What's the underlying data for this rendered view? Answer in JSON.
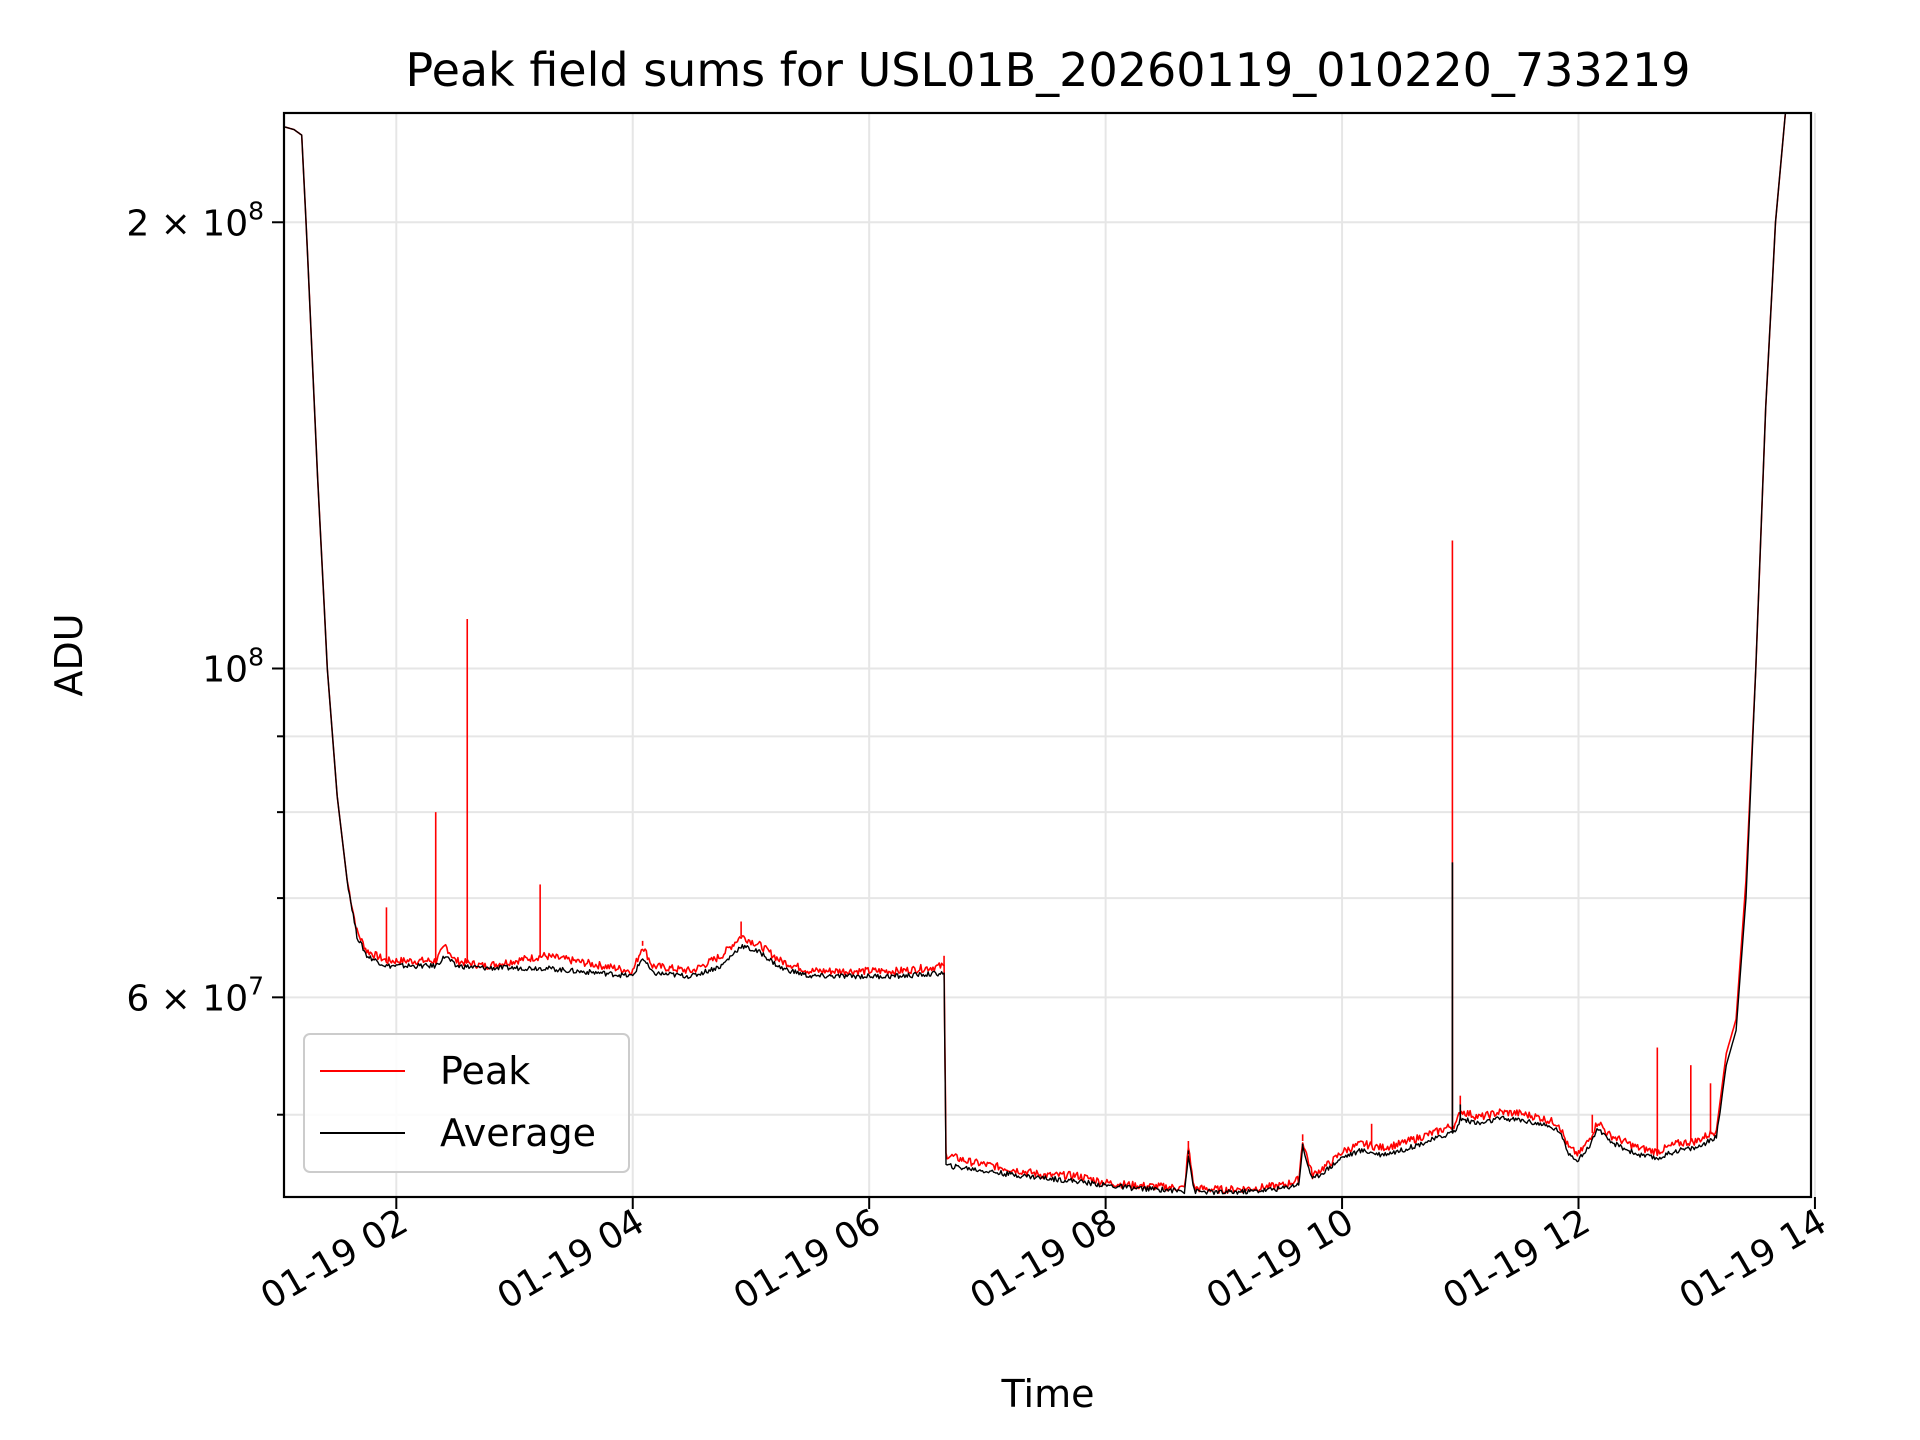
{
  "chart_data": {
    "type": "line",
    "title": "Peak field sums for USL01B_20260119_010220_733219",
    "xlabel": "Time",
    "ylabel": "ADU",
    "yscale": "log",
    "grid": true,
    "legend_placement": "lower-left",
    "x_ticks": [
      "01-19 02",
      "01-19 04",
      "01-19 06",
      "01-19 08",
      "01-19 10",
      "01-19 12",
      "01-19 14"
    ],
    "y_ticks": [
      {
        "value": 200000000,
        "mantissa": "2",
        "exponent": "8"
      },
      {
        "value": 100000000,
        "mantissa": "",
        "exponent": "8"
      },
      {
        "value": 60000000,
        "mantissa": "6",
        "exponent": "7"
      }
    ],
    "xlim": [
      "01-19 01:03",
      "01-19 13:58"
    ],
    "ylim": [
      44000000,
      237000000
    ],
    "colors": {
      "Peak": "#ff0000",
      "Average": "#000000"
    },
    "series": [
      {
        "name": "Peak",
        "color": "#ff0000",
        "points": [
          [
            "01:03",
            232000000
          ],
          [
            "01:08",
            231000000
          ],
          [
            "01:12",
            229000000
          ],
          [
            "01:15",
            190000000
          ],
          [
            "01:20",
            135000000
          ],
          [
            "01:25",
            100000000
          ],
          [
            "01:30",
            82000000
          ],
          [
            "01:35",
            72000000
          ],
          [
            "01:40",
            66500000
          ],
          [
            "01:45",
            64500000
          ],
          [
            "01:50",
            64000000
          ],
          [
            "01:55",
            63500000
          ],
          [
            "02:00",
            63500000
          ],
          [
            "02:10",
            63500000
          ],
          [
            "02:20",
            63500000
          ],
          [
            "02:25",
            65000000
          ],
          [
            "02:30",
            63500000
          ],
          [
            "02:45",
            63000000
          ],
          [
            "03:00",
            63500000
          ],
          [
            "03:15",
            64000000
          ],
          [
            "03:30",
            63500000
          ],
          [
            "03:45",
            63000000
          ],
          [
            "04:00",
            62500000
          ],
          [
            "04:05",
            65000000
          ],
          [
            "04:10",
            63000000
          ],
          [
            "04:30",
            62500000
          ],
          [
            "04:45",
            64000000
          ],
          [
            "04:55",
            66000000
          ],
          [
            "05:05",
            65000000
          ],
          [
            "05:15",
            63500000
          ],
          [
            "05:30",
            62500000
          ],
          [
            "05:45",
            62500000
          ],
          [
            "06:00",
            62500000
          ],
          [
            "06:15",
            62500000
          ],
          [
            "06:38",
            63000000
          ],
          [
            "06:39",
            47000000
          ],
          [
            "06:50",
            46500000
          ],
          [
            "07:10",
            46000000
          ],
          [
            "07:30",
            45500000
          ],
          [
            "07:45",
            45500000
          ],
          [
            "08:00",
            45000000
          ],
          [
            "08:15",
            44800000
          ],
          [
            "08:30",
            44700000
          ],
          [
            "08:40",
            44600000
          ],
          [
            "08:42",
            47500000
          ],
          [
            "08:45",
            44600000
          ],
          [
            "09:00",
            44500000
          ],
          [
            "09:15",
            44600000
          ],
          [
            "09:30",
            44800000
          ],
          [
            "09:38",
            45200000
          ],
          [
            "09:40",
            48000000
          ],
          [
            "09:45",
            45500000
          ],
          [
            "09:55",
            46500000
          ],
          [
            "10:00",
            47200000
          ],
          [
            "10:10",
            47800000
          ],
          [
            "10:20",
            47500000
          ],
          [
            "10:30",
            47800000
          ],
          [
            "10:40",
            48300000
          ],
          [
            "10:50",
            48800000
          ],
          [
            "10:58",
            49300000
          ],
          [
            "11:00",
            50300000
          ],
          [
            "11:10",
            49800000
          ],
          [
            "11:20",
            50200000
          ],
          [
            "11:30",
            50100000
          ],
          [
            "11:40",
            49800000
          ],
          [
            "11:50",
            49300000
          ],
          [
            "11:55",
            47500000
          ],
          [
            "12:00",
            47000000
          ],
          [
            "12:05",
            48000000
          ],
          [
            "12:10",
            49500000
          ],
          [
            "12:15",
            48500000
          ],
          [
            "12:30",
            47500000
          ],
          [
            "12:40",
            47200000
          ],
          [
            "12:50",
            47800000
          ],
          [
            "13:00",
            48000000
          ],
          [
            "13:10",
            48800000
          ],
          [
            "13:15",
            55000000
          ],
          [
            "13:20",
            58000000
          ],
          [
            "13:25",
            72000000
          ],
          [
            "13:30",
            100000000
          ],
          [
            "13:35",
            150000000
          ],
          [
            "13:40",
            200000000
          ],
          [
            "13:45",
            237000000
          ]
        ],
        "spikes": [
          [
            "01:55",
            69000000
          ],
          [
            "02:20",
            80000000
          ],
          [
            "02:36",
            108000000
          ],
          [
            "03:13",
            71500000
          ],
          [
            "04:05",
            65500000
          ],
          [
            "04:55",
            67500000
          ],
          [
            "06:38",
            64000000
          ],
          [
            "08:42",
            48000000
          ],
          [
            "09:40",
            48500000
          ],
          [
            "10:15",
            49300000
          ],
          [
            "10:56",
            122000000
          ],
          [
            "11:00",
            51500000
          ],
          [
            "12:07",
            50000000
          ],
          [
            "12:40",
            55500000
          ],
          [
            "12:57",
            54000000
          ],
          [
            "13:07",
            52500000
          ]
        ]
      },
      {
        "name": "Average",
        "color": "#000000",
        "points": [
          [
            "01:03",
            232000000
          ],
          [
            "01:08",
            231000000
          ],
          [
            "01:12",
            229000000
          ],
          [
            "01:15",
            190000000
          ],
          [
            "01:20",
            135000000
          ],
          [
            "01:25",
            100000000
          ],
          [
            "01:30",
            82000000
          ],
          [
            "01:35",
            72000000
          ],
          [
            "01:40",
            66000000
          ],
          [
            "01:45",
            64000000
          ],
          [
            "01:50",
            63500000
          ],
          [
            "01:55",
            63000000
          ],
          [
            "02:00",
            63000000
          ],
          [
            "02:10",
            63000000
          ],
          [
            "02:20",
            63000000
          ],
          [
            "02:25",
            64000000
          ],
          [
            "02:30",
            63000000
          ],
          [
            "02:45",
            62800000
          ],
          [
            "03:00",
            62800000
          ],
          [
            "03:15",
            62800000
          ],
          [
            "03:30",
            62500000
          ],
          [
            "03:45",
            62300000
          ],
          [
            "04:00",
            62000000
          ],
          [
            "04:05",
            63800000
          ],
          [
            "04:10",
            62300000
          ],
          [
            "04:30",
            62000000
          ],
          [
            "04:45",
            63000000
          ],
          [
            "04:55",
            65000000
          ],
          [
            "05:05",
            64300000
          ],
          [
            "05:15",
            62800000
          ],
          [
            "05:30",
            62000000
          ],
          [
            "05:45",
            62000000
          ],
          [
            "06:00",
            62000000
          ],
          [
            "06:15",
            62000000
          ],
          [
            "06:38",
            62300000
          ],
          [
            "06:39",
            46200000
          ],
          [
            "06:50",
            46000000
          ],
          [
            "07:10",
            45600000
          ],
          [
            "07:30",
            45300000
          ],
          [
            "07:45",
            45100000
          ],
          [
            "08:00",
            44800000
          ],
          [
            "08:15",
            44600000
          ],
          [
            "08:30",
            44500000
          ],
          [
            "08:40",
            44400000
          ],
          [
            "08:42",
            47000000
          ],
          [
            "08:45",
            44400000
          ],
          [
            "09:00",
            44300000
          ],
          [
            "09:15",
            44400000
          ],
          [
            "09:30",
            44600000
          ],
          [
            "09:38",
            44900000
          ],
          [
            "09:40",
            47500000
          ],
          [
            "09:45",
            45200000
          ],
          [
            "09:55",
            46200000
          ],
          [
            "10:00",
            46800000
          ],
          [
            "10:10",
            47300000
          ],
          [
            "10:20",
            47000000
          ],
          [
            "10:30",
            47300000
          ],
          [
            "10:40",
            47800000
          ],
          [
            "10:50",
            48300000
          ],
          [
            "10:58",
            48800000
          ],
          [
            "11:00",
            49700000
          ],
          [
            "11:10",
            49300000
          ],
          [
            "11:20",
            49700000
          ],
          [
            "11:30",
            49600000
          ],
          [
            "11:40",
            49300000
          ],
          [
            "11:50",
            48800000
          ],
          [
            "11:55",
            47100000
          ],
          [
            "12:00",
            46600000
          ],
          [
            "12:05",
            47500000
          ],
          [
            "12:10",
            49000000
          ],
          [
            "12:15",
            48000000
          ],
          [
            "12:30",
            47000000
          ],
          [
            "12:40",
            46700000
          ],
          [
            "12:50",
            47300000
          ],
          [
            "13:00",
            47500000
          ],
          [
            "13:10",
            48300000
          ],
          [
            "13:15",
            54000000
          ],
          [
            "13:20",
            57000000
          ],
          [
            "13:25",
            70000000
          ],
          [
            "13:30",
            100000000
          ],
          [
            "13:35",
            150000000
          ],
          [
            "13:40",
            200000000
          ],
          [
            "13:45",
            237000000
          ]
        ],
        "spikes": [
          [
            "10:56",
            74000000
          ],
          [
            "11:00",
            50800000
          ],
          [
            "08:42",
            47300000
          ],
          [
            "09:40",
            47800000
          ]
        ]
      }
    ]
  }
}
